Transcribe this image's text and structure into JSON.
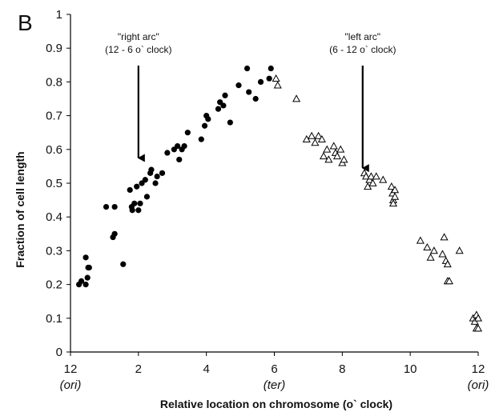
{
  "chart_data": {
    "type": "scatter",
    "panel_label": "B",
    "xlabel": "Relative location on chromosome (o` clock)",
    "ylabel": "Fraction of cell length",
    "xlim": [
      0,
      12
    ],
    "ylim": [
      0,
      1
    ],
    "x_ticks": [
      "12",
      "2",
      "4",
      "6",
      "8",
      "10",
      "12"
    ],
    "x_tick_values": [
      0,
      2,
      4,
      6,
      8,
      10,
      12
    ],
    "x_sublabels": [
      {
        "x": 0,
        "text": "(ori)"
      },
      {
        "x": 6,
        "text": "(ter)"
      },
      {
        "x": 12,
        "text": "(ori)"
      }
    ],
    "y_ticks": [
      "0",
      "0.1",
      "0.2",
      "0.3",
      "0.4",
      "0.5",
      "0.6",
      "0.7",
      "0.8",
      "0.9",
      "1"
    ],
    "y_tick_values": [
      0,
      0.1,
      0.2,
      0.3,
      0.4,
      0.5,
      0.6,
      0.7,
      0.8,
      0.9,
      1
    ],
    "grid": false,
    "annotations": [
      {
        "lines": [
          "\"right arc\"",
          "(12 - 6 o` clock)"
        ],
        "x": 2,
        "arrow_to_y": 0.57
      },
      {
        "lines": [
          "\"left arc\"",
          "(6 - 12 o` clock)"
        ],
        "x": 8.6,
        "arrow_to_y": 0.54
      }
    ],
    "series": [
      {
        "marker": "filled-circle",
        "points": [
          [
            0.25,
            0.2
          ],
          [
            0.32,
            0.21
          ],
          [
            0.45,
            0.2
          ],
          [
            0.45,
            0.28
          ],
          [
            0.5,
            0.22
          ],
          [
            0.52,
            0.25
          ],
          [
            0.55,
            0.25
          ],
          [
            1.05,
            0.43
          ],
          [
            1.25,
            0.34
          ],
          [
            1.3,
            0.35
          ],
          [
            1.3,
            0.43
          ],
          [
            1.55,
            0.26
          ],
          [
            1.75,
            0.48
          ],
          [
            1.8,
            0.43
          ],
          [
            1.82,
            0.42
          ],
          [
            1.88,
            0.44
          ],
          [
            1.95,
            0.49
          ],
          [
            2.0,
            0.42
          ],
          [
            2.05,
            0.44
          ],
          [
            2.1,
            0.5
          ],
          [
            2.2,
            0.51
          ],
          [
            2.25,
            0.46
          ],
          [
            2.35,
            0.53
          ],
          [
            2.38,
            0.54
          ],
          [
            2.5,
            0.5
          ],
          [
            2.55,
            0.52
          ],
          [
            2.7,
            0.53
          ],
          [
            2.85,
            0.59
          ],
          [
            3.05,
            0.6
          ],
          [
            3.15,
            0.61
          ],
          [
            3.2,
            0.57
          ],
          [
            3.28,
            0.6
          ],
          [
            3.35,
            0.61
          ],
          [
            3.45,
            0.65
          ],
          [
            3.85,
            0.63
          ],
          [
            3.95,
            0.67
          ],
          [
            4.0,
            0.7
          ],
          [
            4.05,
            0.69
          ],
          [
            4.35,
            0.72
          ],
          [
            4.4,
            0.74
          ],
          [
            4.5,
            0.73
          ],
          [
            4.55,
            0.76
          ],
          [
            4.7,
            0.68
          ],
          [
            4.95,
            0.79
          ],
          [
            5.2,
            0.84
          ],
          [
            5.25,
            0.77
          ],
          [
            5.45,
            0.75
          ],
          [
            5.6,
            0.8
          ],
          [
            5.85,
            0.81
          ],
          [
            5.9,
            0.84
          ]
        ]
      },
      {
        "marker": "open-triangle",
        "points": [
          [
            6.05,
            0.81
          ],
          [
            6.1,
            0.79
          ],
          [
            6.65,
            0.75
          ],
          [
            6.95,
            0.63
          ],
          [
            7.1,
            0.64
          ],
          [
            7.2,
            0.62
          ],
          [
            7.3,
            0.64
          ],
          [
            7.4,
            0.63
          ],
          [
            7.45,
            0.58
          ],
          [
            7.55,
            0.6
          ],
          [
            7.6,
            0.57
          ],
          [
            7.75,
            0.61
          ],
          [
            7.8,
            0.59
          ],
          [
            7.85,
            0.58
          ],
          [
            7.95,
            0.6
          ],
          [
            8.0,
            0.56
          ],
          [
            8.05,
            0.57
          ],
          [
            8.65,
            0.53
          ],
          [
            8.7,
            0.52
          ],
          [
            8.75,
            0.49
          ],
          [
            8.8,
            0.51
          ],
          [
            8.85,
            0.52
          ],
          [
            8.9,
            0.5
          ],
          [
            9.0,
            0.52
          ],
          [
            9.2,
            0.51
          ],
          [
            9.45,
            0.49
          ],
          [
            9.48,
            0.47
          ],
          [
            9.5,
            0.45
          ],
          [
            9.5,
            0.44
          ],
          [
            9.55,
            0.48
          ],
          [
            9.55,
            0.46
          ],
          [
            10.3,
            0.33
          ],
          [
            10.5,
            0.31
          ],
          [
            10.6,
            0.28
          ],
          [
            10.7,
            0.3
          ],
          [
            10.95,
            0.29
          ],
          [
            11.0,
            0.34
          ],
          [
            11.05,
            0.27
          ],
          [
            11.1,
            0.26
          ],
          [
            11.1,
            0.21
          ],
          [
            11.15,
            0.21
          ],
          [
            11.45,
            0.3
          ],
          [
            11.85,
            0.1
          ],
          [
            11.9,
            0.09
          ],
          [
            11.95,
            0.07
          ],
          [
            11.95,
            0.11
          ],
          [
            12.0,
            0.1
          ],
          [
            12.0,
            0.07
          ]
        ]
      }
    ]
  }
}
